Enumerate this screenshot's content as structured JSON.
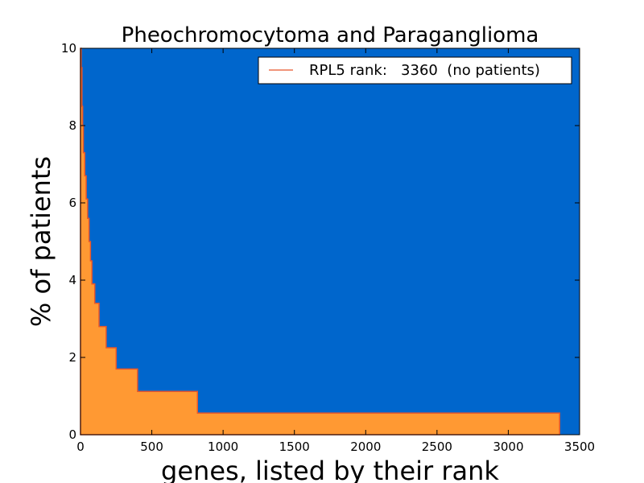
{
  "chart_data": {
    "type": "area",
    "title": "Pheochromocytoma and Paraganglioma",
    "xlabel": "genes, listed by their rank",
    "ylabel": "% of patients",
    "xlim": [
      0,
      3500
    ],
    "ylim": [
      0,
      10
    ],
    "xticks": [
      "0",
      "500",
      "1000",
      "1500",
      "2000",
      "2500",
      "3000",
      "3500"
    ],
    "yticks": [
      "0",
      "2",
      "4",
      "6",
      "8",
      "10"
    ],
    "background_color": "#0066cc",
    "fill_color": "#ff9933",
    "edge_color": "#e8562a",
    "legend": {
      "placement": "top-right",
      "label": "RPL5 rank:   3360  (no patients)",
      "line_color": "#e8562a"
    },
    "series": [
      {
        "x": [
          0,
          5,
          10,
          15,
          20,
          30,
          40,
          50,
          60,
          70,
          80,
          100,
          130,
          180,
          250,
          400,
          820,
          3360
        ],
        "y": [
          10,
          9.5,
          8.5,
          8.0,
          7.3,
          6.7,
          6.1,
          5.6,
          5.0,
          4.5,
          3.9,
          3.4,
          2.8,
          2.25,
          1.7,
          1.12,
          0.56,
          0.56
        ]
      }
    ]
  }
}
